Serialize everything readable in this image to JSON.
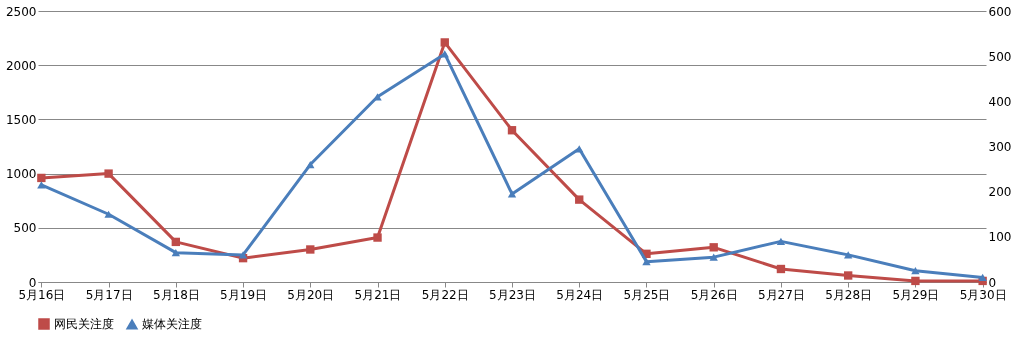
{
  "chart_data": {
    "type": "line",
    "categories": [
      "5月16日",
      "5月17日",
      "5月18日",
      "5月19日",
      "5月20日",
      "5月21日",
      "5月22日",
      "5月23日",
      "5月24日",
      "5月25日",
      "5月26日",
      "5月27日",
      "5月28日",
      "5月29日",
      "5月30日"
    ],
    "series": [
      {
        "name": "网民关注度",
        "color": "#be4b48",
        "marker": "square",
        "axis": "y",
        "values": [
          960,
          1000,
          370,
          220,
          300,
          410,
          2210,
          1400,
          760,
          260,
          320,
          120,
          60,
          10,
          10
        ]
      },
      {
        "name": "媒体关注度",
        "color": "#4a7ebb",
        "marker": "triangle",
        "axis": "y2",
        "values": [
          215,
          150,
          65,
          60,
          260,
          410,
          505,
          195,
          295,
          45,
          55,
          90,
          60,
          25,
          10
        ]
      }
    ],
    "ylim": [
      0,
      2500
    ],
    "yticks": [
      0,
      500,
      1000,
      1500,
      2000,
      2500
    ],
    "y2lim": [
      0,
      600
    ],
    "y2ticks": [
      0,
      100,
      200,
      300,
      400,
      500,
      600
    ],
    "grid": "y",
    "legend": "bottom",
    "line_style": "solid"
  }
}
